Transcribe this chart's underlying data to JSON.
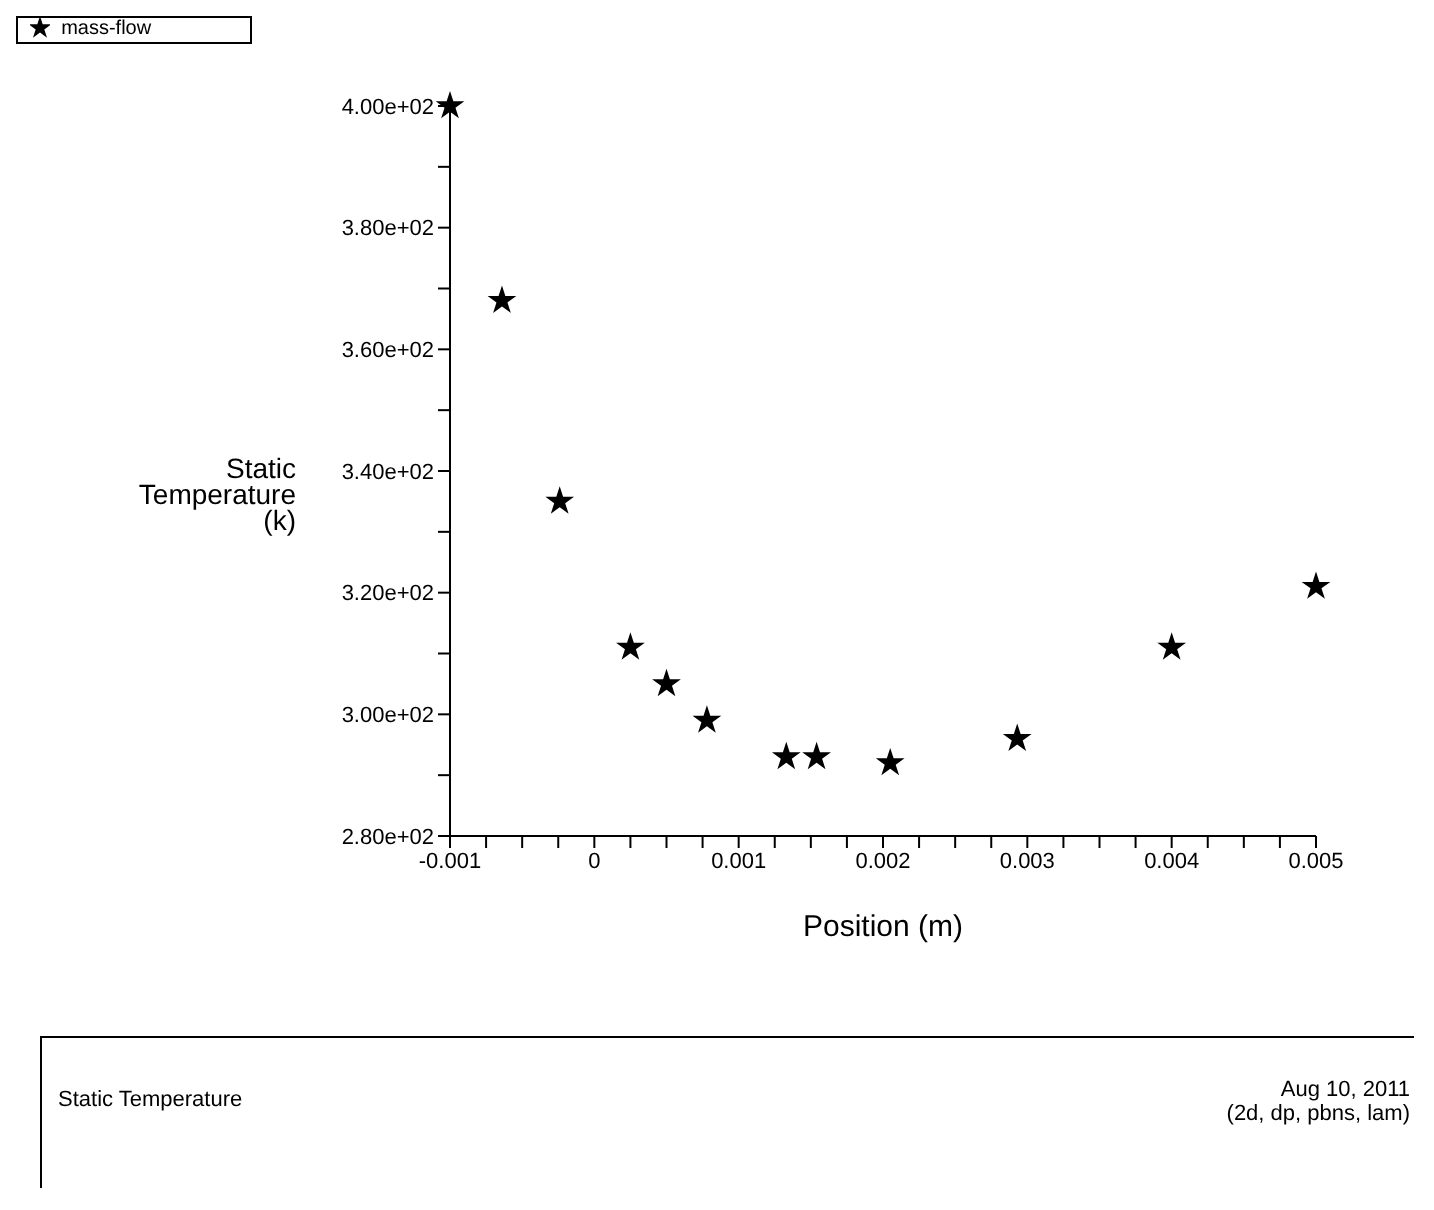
{
  "chart_data": {
    "type": "scatter",
    "xlabel": "Position (m)",
    "ylabel": "Static\nTemperature\n(k)",
    "annotations": [
      "Static Temperature",
      "Aug 10, 2011",
      "(2d, dp, pbns, lam)"
    ],
    "x": [
      -0.001,
      -0.00064,
      -0.00024,
      0.00025,
      0.0005,
      0.00078,
      0.00133,
      0.00154,
      0.00205,
      0.00293,
      0.004,
      0.005
    ],
    "series": [
      {
        "name": "mass-flow",
        "color": "#000000",
        "values": [
          400,
          368,
          335,
          311,
          305,
          299,
          293,
          293,
          292,
          296,
          311,
          321
        ]
      }
    ],
    "xlim": [
      -0.001,
      0.005
    ],
    "xticks": [
      -0.001,
      {
        "value": -0.00075,
        "label": null
      },
      {
        "value": -0.0005,
        "label": null
      },
      {
        "value": -0.00025,
        "label": null
      },
      0,
      {
        "value": 0.00025,
        "label": null
      },
      {
        "value": 0.0005,
        "label": null
      },
      {
        "value": 0.00075,
        "label": null
      },
      0.001,
      {
        "value": 0.00125,
        "label": null
      },
      {
        "value": 0.0015,
        "label": null
      },
      {
        "value": 0.00175,
        "label": null
      },
      0.002,
      {
        "value": 0.00225,
        "label": null
      },
      {
        "value": 0.0025,
        "label": null
      },
      {
        "value": 0.00275,
        "label": null
      },
      0.003,
      {
        "value": 0.00325,
        "label": null
      },
      {
        "value": 0.0035,
        "label": null
      },
      {
        "value": 0.00375,
        "label": null
      },
      0.004,
      {
        "value": 0.00425,
        "label": null
      },
      {
        "value": 0.0045,
        "label": null
      },
      {
        "value": 0.00475,
        "label": null
      },
      0.005
    ],
    "ylim": [
      280,
      400
    ],
    "yticks": [
      {
        "value": 280,
        "label": "2.80e+02"
      },
      {
        "value": 290,
        "label": null
      },
      {
        "value": 300,
        "label": "3.00e+02"
      },
      {
        "value": 310,
        "label": null
      },
      {
        "value": 320,
        "label": "3.20e+02"
      },
      {
        "value": 330,
        "label": null
      },
      {
        "value": 340,
        "label": "3.40e+02"
      },
      {
        "value": 350,
        "label": null
      },
      {
        "value": 360,
        "label": "3.60e+02"
      },
      {
        "value": 370,
        "label": null
      },
      {
        "value": 380,
        "label": "3.80e+02"
      },
      {
        "value": 390,
        "label": null
      },
      {
        "value": 400,
        "label": "4.00e+02"
      }
    ],
    "marker": "star",
    "grid": false,
    "legend": "top left"
  }
}
